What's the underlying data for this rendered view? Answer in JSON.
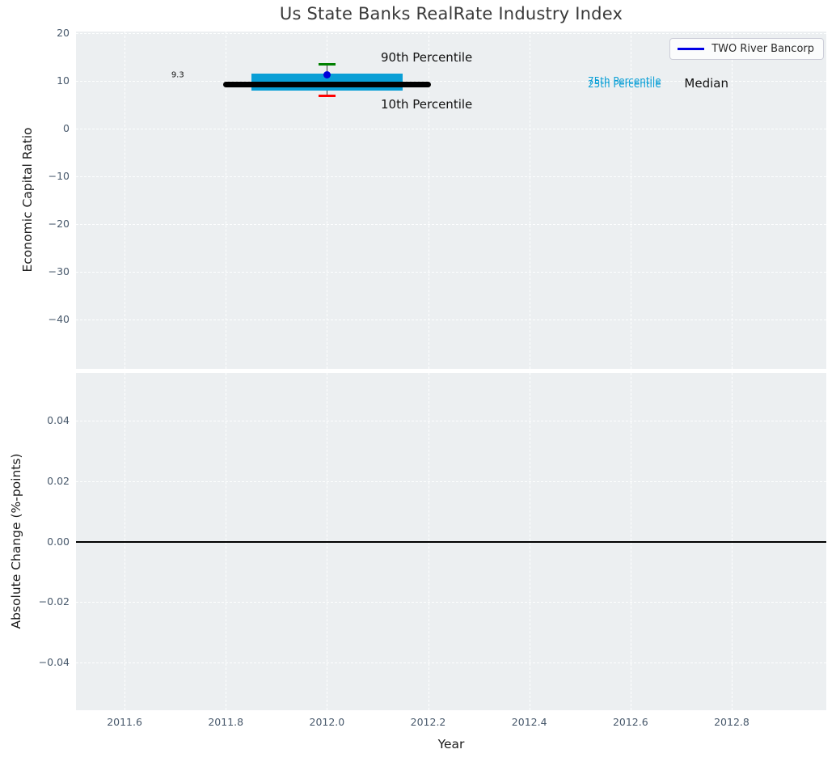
{
  "title": "Us State Banks RealRate Industry Index",
  "legend": {
    "items": [
      {
        "label": "TWO River Bancorp",
        "color": "#0000e6"
      }
    ]
  },
  "chart_data": [
    {
      "type": "boxplot",
      "title": "Us State Banks RealRate Industry Index",
      "xlabel": "Year",
      "ylabel": "Economic Capital Ratio",
      "xlim": [
        2011.504,
        2012.987
      ],
      "ylim": [
        -50.3,
        20.35
      ],
      "grid": "white-dashed",
      "legend_position": "upper right",
      "show_xtick_labels": false,
      "xticks": [
        {
          "v": 2011.6,
          "label": "2011.6"
        },
        {
          "v": 2011.8,
          "label": "2011.8"
        },
        {
          "v": 2012.0,
          "label": "2012.0"
        },
        {
          "v": 2012.2,
          "label": "2012.2"
        },
        {
          "v": 2012.4,
          "label": "2012.4"
        },
        {
          "v": 2012.6,
          "label": "2012.6"
        },
        {
          "v": 2012.8,
          "label": "2012.8"
        }
      ],
      "yticks": [
        {
          "v": 20,
          "label": "20"
        },
        {
          "v": 10,
          "label": "10"
        },
        {
          "v": 0,
          "label": "0"
        },
        {
          "v": -10,
          "label": "−10"
        },
        {
          "v": -20,
          "label": "−20"
        },
        {
          "v": -30,
          "label": "−30"
        },
        {
          "v": -40,
          "label": "−40"
        }
      ],
      "box": {
        "x": 2012.0,
        "median": 9.3,
        "q1": 7.9,
        "q3": 11.5,
        "p10": 6.9,
        "p90": 13.5,
        "box_halfwidth": 0.15,
        "median_halfwidth": 0.205,
        "cap_halfwidth": 0.017,
        "box_color": "#0a9fd6",
        "median_color": "#000000",
        "p90_color": "#008000",
        "p10_color": "#ff0000"
      },
      "series": [
        {
          "name": "TWO River Bancorp",
          "x": 2012.0,
          "value": 11.3,
          "color": "#0000d9",
          "marker": "dot"
        }
      ],
      "annotations": [
        {
          "text": "9.3",
          "x": 2011.705,
          "y": 11.2,
          "size": 10,
          "color": "#111111"
        },
        {
          "text": "90th Percentile",
          "x": 2012.197,
          "y": 14.9,
          "size": 15,
          "color": "#111111"
        },
        {
          "text": "10th Percentile",
          "x": 2012.197,
          "y": 5.1,
          "size": 15,
          "color": "#111111"
        },
        {
          "text": "75th Percentile",
          "x": 2012.588,
          "y": 10.05,
          "size": 12,
          "color": "#0a9fd6"
        },
        {
          "text": "25th Percentile",
          "x": 2012.588,
          "y": 9.4,
          "size": 12,
          "color": "#0a9fd6"
        },
        {
          "text": "Median",
          "x": 2012.75,
          "y": 9.5,
          "size": 15,
          "color": "#111111"
        }
      ]
    },
    {
      "type": "line",
      "xlabel": "Year",
      "ylabel": "Absolute Change (%-points)",
      "xlim": [
        2011.504,
        2012.987
      ],
      "ylim": [
        -0.0558,
        0.0558
      ],
      "grid": "white-dashed",
      "show_xtick_labels": true,
      "zero_line": true,
      "zero_line_color": "#000000",
      "xticks": [
        {
          "v": 2011.6,
          "label": "2011.6"
        },
        {
          "v": 2011.8,
          "label": "2011.8"
        },
        {
          "v": 2012.0,
          "label": "2012.0"
        },
        {
          "v": 2012.2,
          "label": "2012.2"
        },
        {
          "v": 2012.4,
          "label": "2012.4"
        },
        {
          "v": 2012.6,
          "label": "2012.6"
        },
        {
          "v": 2012.8,
          "label": "2012.8"
        }
      ],
      "yticks": [
        {
          "v": 0.04,
          "label": "0.04"
        },
        {
          "v": 0.02,
          "label": "0.02"
        },
        {
          "v": 0.0,
          "label": "0.00"
        },
        {
          "v": -0.02,
          "label": "−0.02"
        },
        {
          "v": -0.04,
          "label": "−0.04"
        }
      ],
      "series": []
    }
  ]
}
